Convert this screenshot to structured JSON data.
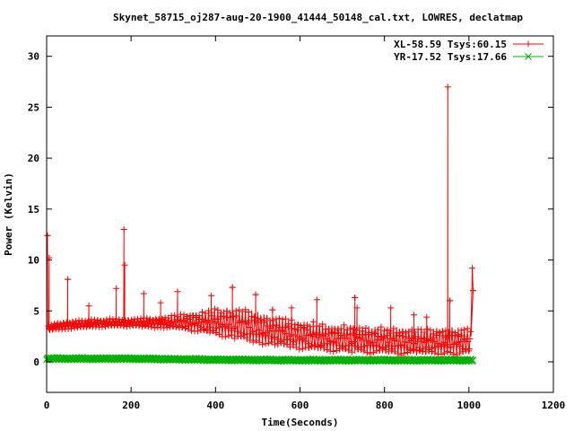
{
  "chart_data": {
    "type": "line",
    "title": "Skynet_58715_oj287-aug-20-1900_41444_50148_cal.txt, LOWRES, declatmap",
    "xlabel": "Time(Seconds)",
    "ylabel": "Power (Kelvin)",
    "xlim": [
      0,
      1200
    ],
    "ylim": [
      -3,
      32
    ],
    "xticks": [
      0,
      200,
      400,
      600,
      800,
      1000,
      1200
    ],
    "yticks": [
      0,
      5,
      10,
      15,
      20,
      25,
      30
    ],
    "grid": false,
    "legend_position": "top-right",
    "series": [
      {
        "name": "XL-58.59 Tsys:60.15",
        "color": "#ff0000",
        "marker": "plus",
        "envelope": {
          "x": [
            3,
            20,
            60,
            100,
            150,
            200,
            250,
            300,
            350,
            400,
            450,
            500,
            550,
            600,
            650,
            700,
            750,
            800,
            850,
            900,
            950,
            1005
          ],
          "low": [
            2.9,
            3.0,
            3.1,
            3.2,
            3.3,
            3.3,
            3.2,
            3.0,
            2.6,
            2.1,
            1.6,
            1.2,
            0.9,
            0.7,
            0.5,
            0.4,
            0.3,
            0.3,
            0.2,
            0.2,
            0.2,
            0.2
          ],
          "high": [
            3.6,
            3.9,
            4.1,
            4.2,
            4.3,
            4.3,
            4.4,
            4.6,
            5.0,
            5.4,
            5.5,
            5.0,
            4.6,
            4.2,
            3.9,
            3.8,
            3.7,
            3.6,
            3.5,
            3.4,
            3.5,
            3.5
          ]
        },
        "spikes": [
          {
            "x": 2,
            "y": 12.4
          },
          {
            "x": 6,
            "y": 10.2
          },
          {
            "x": 50,
            "y": 8.1
          },
          {
            "x": 100,
            "y": 5.5
          },
          {
            "x": 165,
            "y": 7.2
          },
          {
            "x": 183,
            "y": 13.0
          },
          {
            "x": 185,
            "y": 9.5
          },
          {
            "x": 230,
            "y": 6.7
          },
          {
            "x": 270,
            "y": 5.8
          },
          {
            "x": 310,
            "y": 6.9
          },
          {
            "x": 390,
            "y": 6.5
          },
          {
            "x": 440,
            "y": 7.3
          },
          {
            "x": 495,
            "y": 6.6
          },
          {
            "x": 535,
            "y": 5.1
          },
          {
            "x": 580,
            "y": 5.3
          },
          {
            "x": 640,
            "y": 6.1
          },
          {
            "x": 730,
            "y": 6.3
          },
          {
            "x": 735,
            "y": 5.3
          },
          {
            "x": 815,
            "y": 5.3
          },
          {
            "x": 870,
            "y": 4.6
          },
          {
            "x": 900,
            "y": 4.4
          },
          {
            "x": 950,
            "y": 27.0
          },
          {
            "x": 955,
            "y": 6.0
          },
          {
            "x": 1008,
            "y": 9.2
          },
          {
            "x": 1010,
            "y": 7.0
          }
        ]
      },
      {
        "name": "YR-17.52 Tsys:17.66",
        "color": "#00b000",
        "marker": "cross",
        "envelope": {
          "x": [
            0,
            200,
            400,
            600,
            800,
            1010
          ],
          "low": [
            0.15,
            0.15,
            0.05,
            0.0,
            0.0,
            0.0
          ],
          "high": [
            0.45,
            0.45,
            0.35,
            0.3,
            0.3,
            0.3
          ]
        },
        "spikes": []
      }
    ]
  }
}
